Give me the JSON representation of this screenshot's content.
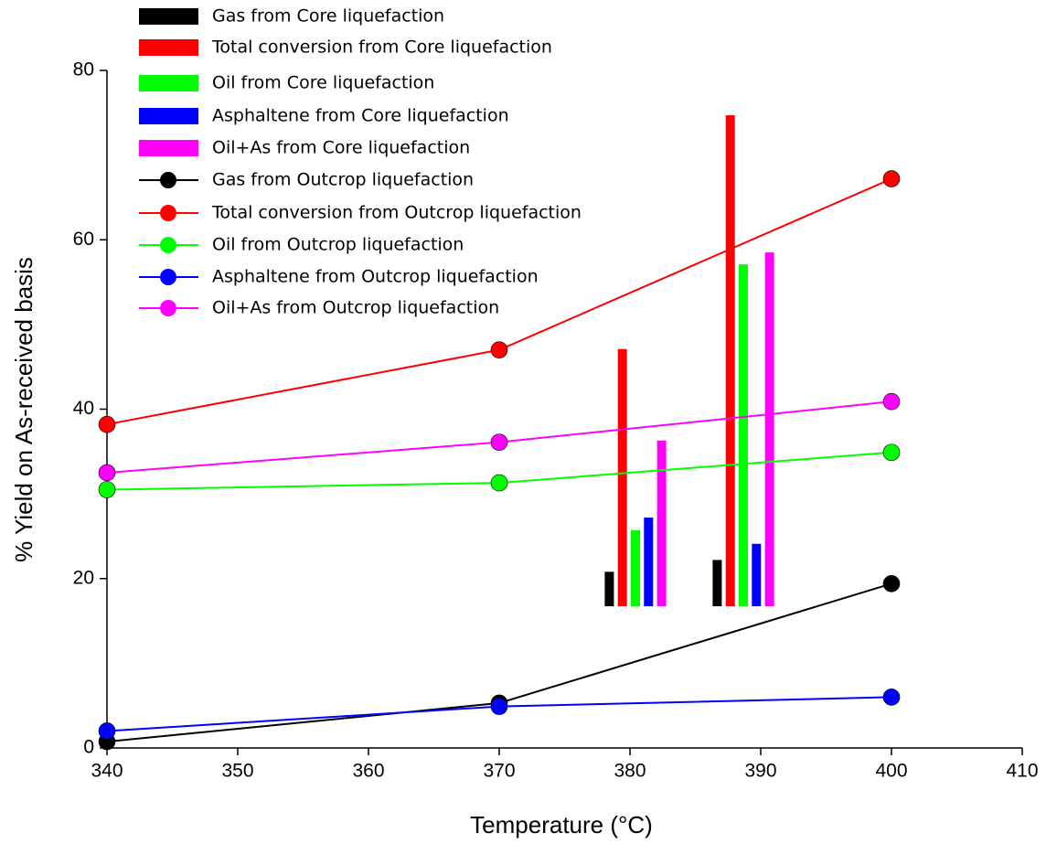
{
  "chart_data": {
    "type": "line",
    "x_label": "Temperature (°C)",
    "y_label": "% Yield on As-received basis",
    "x": [
      340,
      370,
      400
    ],
    "xlim": [
      340,
      410
    ],
    "xticks": [
      340,
      350,
      360,
      370,
      380,
      390,
      400,
      410
    ],
    "ylim": [
      0,
      80
    ],
    "yticks": [
      0,
      20,
      40,
      60,
      80
    ],
    "bar_series": [
      {
        "name": "Gas from Core liquefaction",
        "color": "#000000",
        "values": [
          20.8,
          22.2
        ]
      },
      {
        "name": "Total conversion from Core liquefaction",
        "color": "#ff0000",
        "values": [
          47.1,
          74.7
        ]
      },
      {
        "name": "Oil from Core liquefaction",
        "color": "#00ff00",
        "values": [
          25.7,
          57.1
        ]
      },
      {
        "name": "Asphaltene from Core liquefaction",
        "color": "#0000ff",
        "values": [
          27.2,
          24.1
        ]
      },
      {
        "name": "Oil+As from Core liquefaction",
        "color": "#ff00ff",
        "values": [
          36.3,
          58.5
        ]
      }
    ],
    "series": [
      {
        "name": "Gas from Outcrop liquefaction",
        "color": "#000000",
        "values": [
          0.75,
          5.3,
          19.4
        ]
      },
      {
        "name": "Total conversion from Outcrop liquefaction",
        "color": "#ff0000",
        "values": [
          38.2,
          47.0,
          67.2
        ]
      },
      {
        "name": "Oil from Outcrop liquefaction",
        "color": "#00ff00",
        "values": [
          30.5,
          31.3,
          34.9
        ]
      },
      {
        "name": "Asphaltene from Outcrop liquefaction",
        "color": "#0000ff",
        "values": [
          2.0,
          4.9,
          6.0
        ]
      },
      {
        "name": "Oil+As from Outcrop liquefaction",
        "color": "#ff00ff",
        "values": [
          32.5,
          36.1,
          40.9
        ]
      }
    ]
  }
}
